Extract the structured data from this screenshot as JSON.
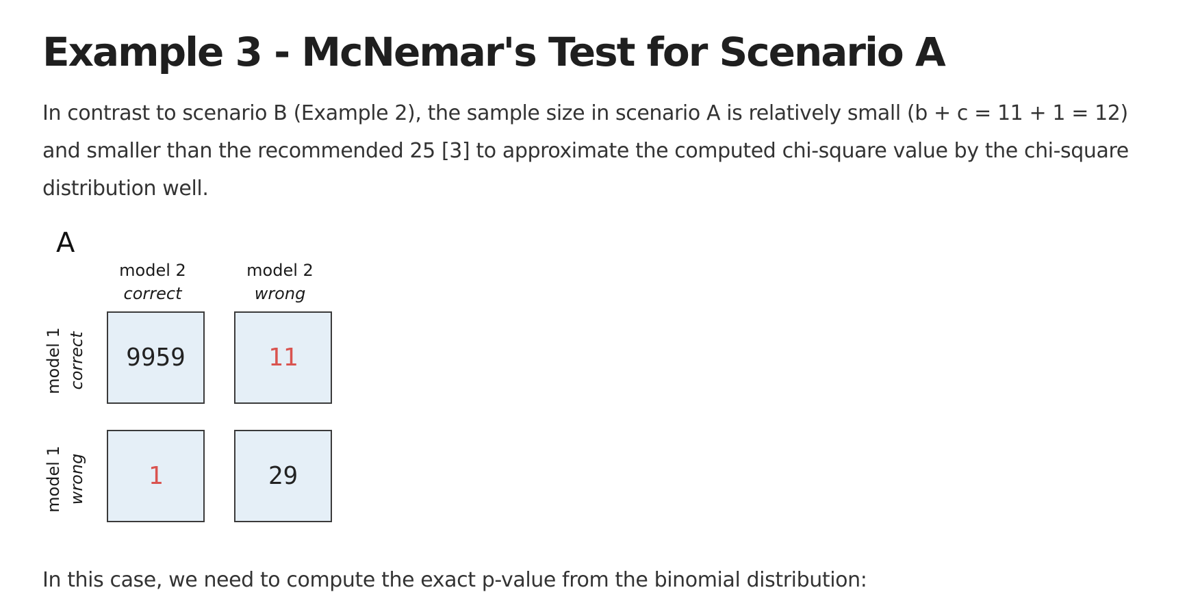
{
  "title": "Example 3 - McNemar's Test for Scenario A",
  "intro": "In contrast to scenario B (Example 2), the sample size in scenario A is relatively small (b + c = 11 + 1 = 12) and smaller than the recommended 25 [3] to approximate the computed chi-square value by the chi-square distribution well.",
  "figure": {
    "panel": "A",
    "columns": [
      {
        "label": "model 2",
        "sub": "correct"
      },
      {
        "label": "model 2",
        "sub": "wrong"
      }
    ],
    "rows": [
      {
        "label": "model 1",
        "sub": "correct"
      },
      {
        "label": "model 1",
        "sub": "wrong"
      }
    ],
    "cells": {
      "correct_correct": "9959",
      "correct_wrong": "11",
      "wrong_correct": "1",
      "wrong_wrong": "29"
    },
    "highlight_color": "#d9534f",
    "cell_color": "#e5eff7"
  },
  "outro": "In this case, we need to compute the exact p-value from the binomial distribution:"
}
